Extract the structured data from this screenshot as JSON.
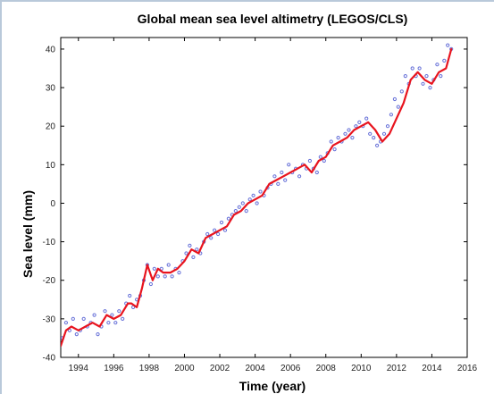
{
  "chart_data": {
    "type": "line",
    "title": "Global mean sea level altimetry (LEGOS/CLS)",
    "xlabel": "Time (year)",
    "ylabel": "Sea level (mm)",
    "xlim": [
      1993,
      2016
    ],
    "ylim": [
      -40,
      43
    ],
    "x_ticks": [
      1994,
      1996,
      1998,
      2000,
      2002,
      2004,
      2006,
      2008,
      2010,
      2012,
      2014,
      2016
    ],
    "y_ticks": [
      -40,
      -30,
      -20,
      -10,
      0,
      10,
      20,
      30,
      40
    ],
    "grid": false,
    "series": [
      {
        "style": "smoothed-line",
        "color": "#e8141e",
        "x": [
          1993.0,
          1993.3,
          1993.6,
          1994.0,
          1994.4,
          1994.8,
          1995.2,
          1995.6,
          1996.0,
          1996.4,
          1996.8,
          1997.0,
          1997.3,
          1997.6,
          1997.9,
          1998.2,
          1998.5,
          1998.8,
          1999.2,
          1999.6,
          2000.0,
          2000.4,
          2000.8,
          2001.2,
          2001.6,
          2002.0,
          2002.4,
          2002.8,
          2003.2,
          2003.6,
          2004.0,
          2004.4,
          2004.8,
          2005.2,
          2005.6,
          2006.0,
          2006.4,
          2006.8,
          2007.2,
          2007.6,
          2008.0,
          2008.4,
          2008.8,
          2009.2,
          2009.6,
          2010.0,
          2010.4,
          2010.8,
          2011.2,
          2011.6,
          2012.0,
          2012.4,
          2012.8,
          2013.2,
          2013.6,
          2014.0,
          2014.4,
          2014.8,
          2015.1
        ],
        "y": [
          -37,
          -33,
          -32,
          -33,
          -32,
          -31,
          -32,
          -29,
          -30,
          -29,
          -26,
          -26,
          -27,
          -22,
          -16,
          -20,
          -17,
          -18,
          -18,
          -17,
          -15,
          -12,
          -13,
          -9,
          -8,
          -7,
          -6,
          -3,
          -2,
          0,
          1,
          2,
          5,
          6,
          7,
          8,
          9,
          10,
          8,
          11,
          12,
          15,
          16,
          17,
          19,
          20,
          21,
          19,
          16,
          18,
          22,
          26,
          32,
          34,
          32,
          31,
          34,
          35,
          40
        ]
      },
      {
        "style": "markers",
        "color": "#6670d8",
        "x": [
          1993.1,
          1993.3,
          1993.5,
          1993.7,
          1993.9,
          1994.1,
          1994.3,
          1994.5,
          1994.7,
          1994.9,
          1995.1,
          1995.3,
          1995.5,
          1995.7,
          1995.9,
          1996.1,
          1996.3,
          1996.5,
          1996.7,
          1996.9,
          1997.1,
          1997.3,
          1997.5,
          1997.7,
          1997.9,
          1998.1,
          1998.3,
          1998.5,
          1998.7,
          1998.9,
          1999.1,
          1999.3,
          1999.5,
          1999.7,
          1999.9,
          2000.1,
          2000.3,
          2000.5,
          2000.7,
          2000.9,
          2001.1,
          2001.3,
          2001.5,
          2001.7,
          2001.9,
          2002.1,
          2002.3,
          2002.5,
          2002.7,
          2002.9,
          2003.1,
          2003.3,
          2003.5,
          2003.7,
          2003.9,
          2004.1,
          2004.3,
          2004.5,
          2004.7,
          2004.9,
          2005.1,
          2005.3,
          2005.5,
          2005.7,
          2005.9,
          2006.1,
          2006.3,
          2006.5,
          2006.7,
          2006.9,
          2007.1,
          2007.3,
          2007.5,
          2007.7,
          2007.9,
          2008.1,
          2008.3,
          2008.5,
          2008.7,
          2008.9,
          2009.1,
          2009.3,
          2009.5,
          2009.7,
          2009.9,
          2010.1,
          2010.3,
          2010.5,
          2010.7,
          2010.9,
          2011.1,
          2011.3,
          2011.5,
          2011.7,
          2011.9,
          2012.1,
          2012.3,
          2012.5,
          2012.7,
          2012.9,
          2013.1,
          2013.3,
          2013.5,
          2013.7,
          2013.9,
          2014.1,
          2014.3,
          2014.5,
          2014.7,
          2014.9,
          2015.1
        ],
        "y": [
          -35,
          -31,
          -33,
          -30,
          -34,
          -33,
          -30,
          -32,
          -31,
          -29,
          -34,
          -32,
          -28,
          -31,
          -29,
          -31,
          -28,
          -30,
          -26,
          -24,
          -27,
          -25,
          -24,
          -20,
          -16,
          -21,
          -17,
          -19,
          -17,
          -19,
          -16,
          -19,
          -17,
          -18,
          -15,
          -13,
          -11,
          -14,
          -12,
          -13,
          -10,
          -8,
          -9,
          -7,
          -8,
          -5,
          -7,
          -4,
          -3,
          -2,
          -1,
          0,
          -2,
          1,
          2,
          0,
          3,
          2,
          4,
          5,
          7,
          5,
          8,
          6,
          10,
          8,
          9,
          7,
          10,
          9,
          11,
          9,
          8,
          12,
          11,
          13,
          16,
          14,
          17,
          16,
          18,
          19,
          17,
          20,
          21,
          20,
          22,
          18,
          17,
          15,
          16,
          18,
          20,
          23,
          27,
          25,
          29,
          33,
          31,
          35,
          33,
          35,
          31,
          33,
          30,
          32,
          36,
          33,
          37,
          41,
          40
        ]
      }
    ]
  }
}
